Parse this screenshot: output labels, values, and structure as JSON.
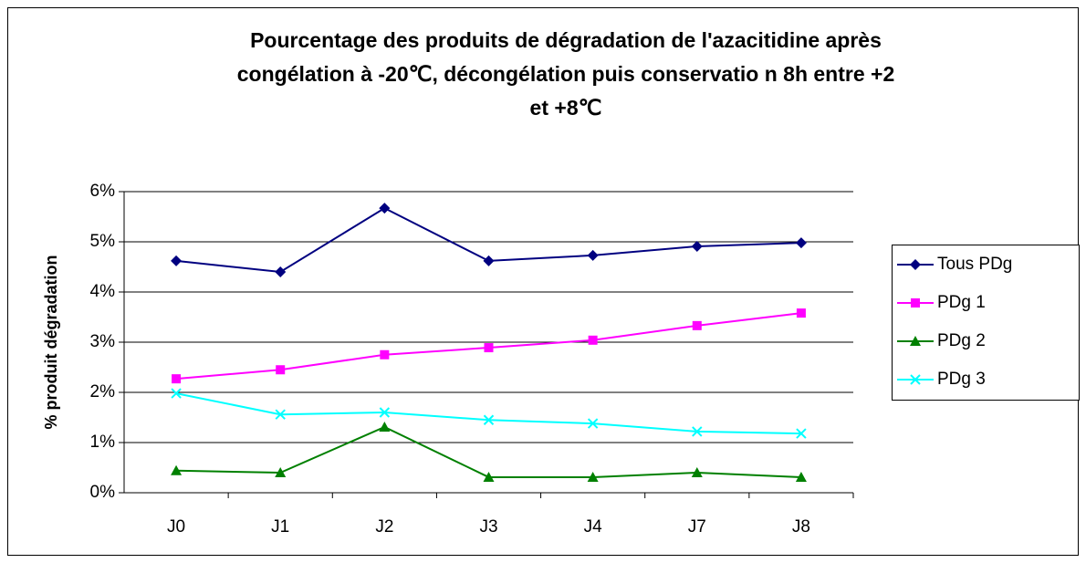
{
  "chart_data": {
    "type": "line",
    "title": [
      "Pourcentage des produits de dégradation de l'azacitidine après",
      "congélation à -20℃, décongélation puis conservatio n 8h entre +2",
      "et +8℃"
    ],
    "y_label": "% produit dégradation",
    "categories": [
      "J0",
      "J1",
      "J2",
      "J3",
      "J4",
      "J7",
      "J8"
    ],
    "series": [
      {
        "name": "Tous PDg",
        "color": "#000080",
        "marker": "diamond",
        "values": [
          4.62,
          4.4,
          5.67,
          4.62,
          4.73,
          4.91,
          4.98
        ]
      },
      {
        "name": "PDg 1",
        "color": "#ff00ff",
        "marker": "square",
        "values": [
          2.27,
          2.45,
          2.75,
          2.89,
          3.04,
          3.33,
          3.58
        ]
      },
      {
        "name": "PDg 2",
        "color": "#008000",
        "marker": "triangle",
        "values": [
          0.44,
          0.4,
          1.31,
          0.31,
          0.31,
          0.4,
          0.31
        ]
      },
      {
        "name": "PDg 3",
        "color": "#00ffff",
        "marker": "x",
        "values": [
          1.98,
          1.56,
          1.6,
          1.45,
          1.38,
          1.22,
          1.18
        ]
      }
    ],
    "ylim": [
      0,
      6
    ],
    "yticks": [
      {
        "value": 0,
        "label": "0%"
      },
      {
        "value": 1,
        "label": "1%"
      },
      {
        "value": 2,
        "label": "2%"
      },
      {
        "value": 3,
        "label": "3%"
      },
      {
        "value": 4,
        "label": "4%"
      },
      {
        "value": 5,
        "label": "5%"
      },
      {
        "value": 6,
        "label": "6%"
      }
    ],
    "grid": true,
    "legend": "right"
  }
}
